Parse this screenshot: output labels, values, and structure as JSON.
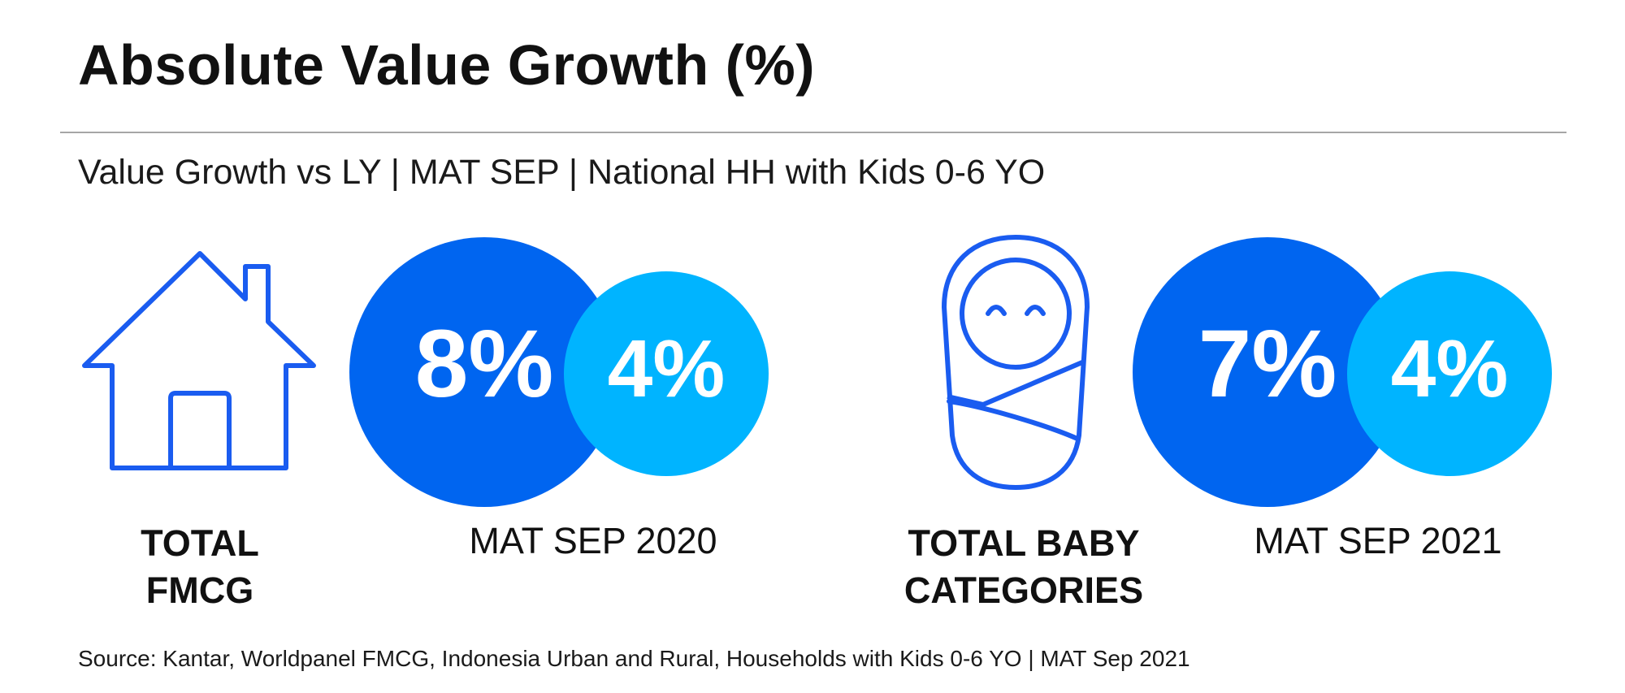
{
  "header": {
    "title": "Absolute Value Growth (%)",
    "subtitle": "Value Growth vs LY | MAT SEP | National HH with Kids 0-6 YO"
  },
  "footer": {
    "source": "Source: Kantar, Worldpanel FMCG, Indonesia Urban and Rural, Households with Kids 0-6 YO | MAT Sep 2021"
  },
  "colors": {
    "dark_blue": "#0065f0",
    "light_blue": "#00b4ff",
    "icon_stroke": "#1a5cf0"
  },
  "icons": {
    "left": "house-icon",
    "right": "swaddled-baby-icon"
  },
  "chart_data": {
    "type": "bubble",
    "title": "Absolute Value Growth (%)",
    "subtitle": "Value Growth vs LY | MAT SEP | National HH with Kids 0-6 YO",
    "unit": "%",
    "period_labels": [
      "MAT SEP 2020",
      "MAT SEP 2021"
    ],
    "groups": [
      {
        "label_lines": [
          "TOTAL",
          "FMCG"
        ],
        "bubbles": [
          {
            "value": 8,
            "label": "8%",
            "color": "#0065f0"
          },
          {
            "value": 4,
            "label": "4%",
            "color": "#00b4ff"
          }
        ]
      },
      {
        "label_lines": [
          "TOTAL BABY",
          "CATEGORIES"
        ],
        "bubbles": [
          {
            "value": 7,
            "label": "7%",
            "color": "#0065f0"
          },
          {
            "value": 4,
            "label": "4%",
            "color": "#00b4ff"
          }
        ]
      }
    ]
  }
}
